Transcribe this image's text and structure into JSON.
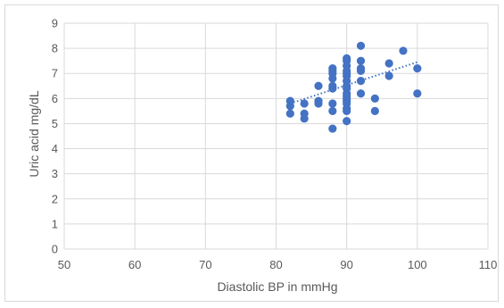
{
  "chart_data": {
    "type": "scatter",
    "title": "",
    "xlabel": "Diastolic BP in mmHg",
    "ylabel": "Uric acid mg/dL",
    "xlim": [
      50,
      110
    ],
    "ylim": [
      0,
      9
    ],
    "xticks": [
      50,
      60,
      70,
      80,
      90,
      100,
      110
    ],
    "yticks": [
      0,
      1,
      2,
      3,
      4,
      5,
      6,
      7,
      8,
      9
    ],
    "grid": true,
    "legend": "none",
    "trendline": {
      "style": "dotted",
      "type": "linear",
      "x_start": 82,
      "x_end": 100,
      "y_start": 5.8,
      "y_end": 7.45
    },
    "series": [
      {
        "color": "#4472c4",
        "points": [
          [
            82,
            5.9
          ],
          [
            82,
            5.7
          ],
          [
            82,
            5.4
          ],
          [
            84,
            5.8
          ],
          [
            84,
            5.4
          ],
          [
            84,
            5.2
          ],
          [
            86,
            6.5
          ],
          [
            86,
            5.9
          ],
          [
            86,
            5.8
          ],
          [
            88,
            7.2
          ],
          [
            88,
            7.1
          ],
          [
            88,
            7.0
          ],
          [
            88,
            6.8
          ],
          [
            88,
            6.5
          ],
          [
            88,
            6.4
          ],
          [
            88,
            5.8
          ],
          [
            88,
            5.5
          ],
          [
            88,
            4.8
          ],
          [
            90,
            7.6
          ],
          [
            90,
            7.5
          ],
          [
            90,
            7.3
          ],
          [
            90,
            7.1
          ],
          [
            90,
            7.0
          ],
          [
            90,
            6.9
          ],
          [
            90,
            6.7
          ],
          [
            90,
            6.5
          ],
          [
            90,
            6.4
          ],
          [
            90,
            6.2
          ],
          [
            90,
            6.1
          ],
          [
            90,
            6.0
          ],
          [
            90,
            5.9
          ],
          [
            90,
            5.8
          ],
          [
            90,
            5.6
          ],
          [
            90,
            5.5
          ],
          [
            90,
            5.1
          ],
          [
            92,
            8.1
          ],
          [
            92,
            7.5
          ],
          [
            92,
            7.2
          ],
          [
            92,
            7.1
          ],
          [
            92,
            6.7
          ],
          [
            92,
            6.2
          ],
          [
            94,
            6.0
          ],
          [
            94,
            5.5
          ],
          [
            96,
            7.4
          ],
          [
            96,
            6.9
          ],
          [
            98,
            7.9
          ],
          [
            100,
            7.2
          ],
          [
            100,
            6.2
          ]
        ]
      }
    ]
  }
}
